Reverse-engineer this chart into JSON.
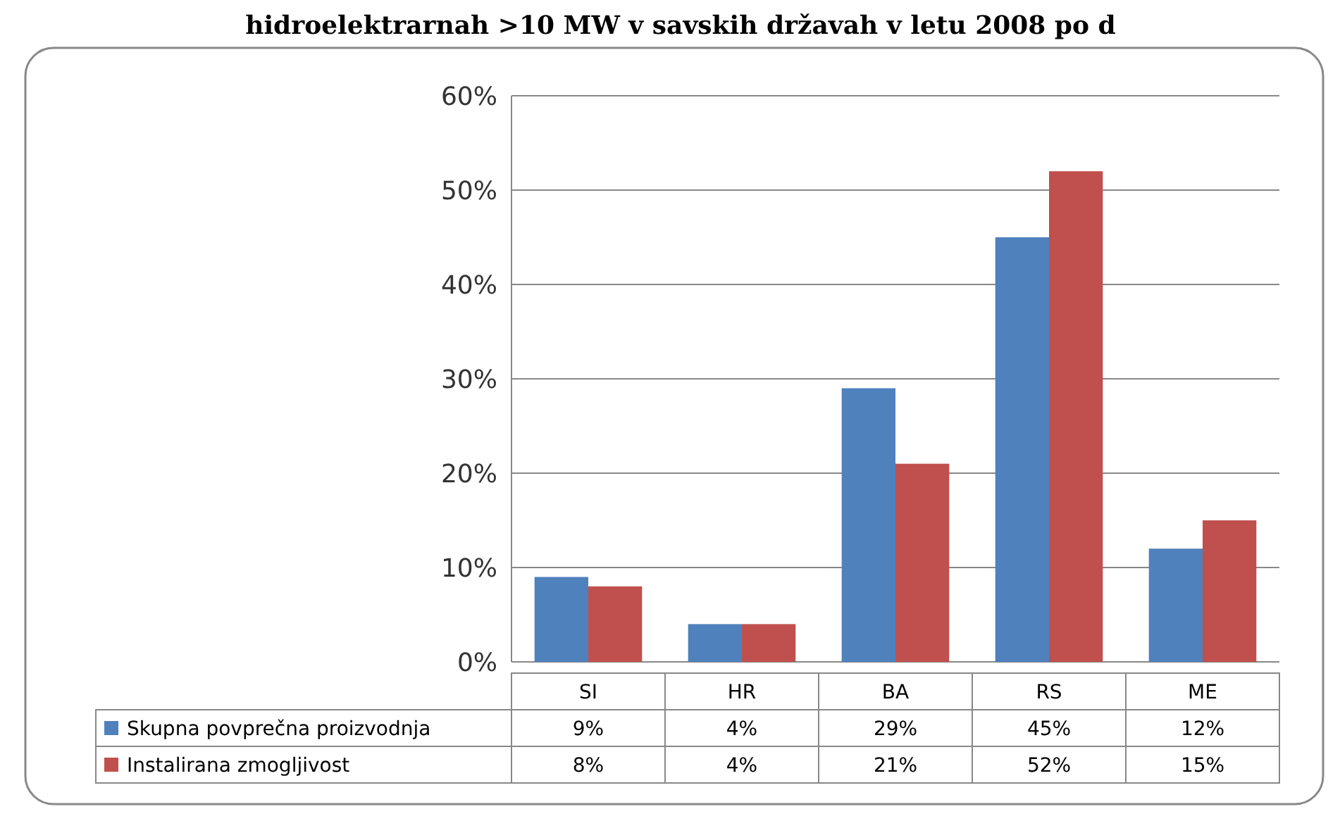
{
  "chart_data": {
    "type": "bar",
    "title": "hidroelektrarnah >10 MW v savskih državah v letu 2008 po d",
    "categories": [
      "SI",
      "HR",
      "BA",
      "RS",
      "ME"
    ],
    "series": [
      {
        "name": "Skupna povprečna proizvodnja",
        "color": "#4f81bd",
        "values": [
          9,
          4,
          29,
          45,
          12
        ],
        "value_labels": [
          "9%",
          "4%",
          "29%",
          "45%",
          "12%"
        ]
      },
      {
        "name": "Instalirana zmogljivost",
        "color": "#c0504d",
        "values": [
          8,
          4,
          21,
          52,
          15
        ],
        "value_labels": [
          "8%",
          "4%",
          "21%",
          "52%",
          "15%"
        ]
      }
    ],
    "ylim": [
      0,
      60
    ],
    "yticks": [
      {
        "value": 0,
        "label": "0%"
      },
      {
        "value": 10,
        "label": "10%"
      },
      {
        "value": 20,
        "label": "20%"
      },
      {
        "value": 30,
        "label": "30%"
      },
      {
        "value": 40,
        "label": "40%"
      },
      {
        "value": 50,
        "label": "50%"
      },
      {
        "value": 60,
        "label": "60%"
      }
    ],
    "grid": "y",
    "legend": "bottom"
  }
}
